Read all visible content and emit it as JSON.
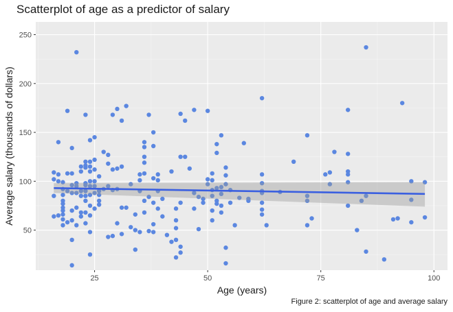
{
  "chart_data": {
    "type": "scatter",
    "title": "Scatterplot of age as a predictor of salary",
    "xlabel": "Age (years)",
    "ylabel": "Average salary (thousands of dollars)",
    "caption": "Figure 2: scatterplot of age and average salary",
    "xlim": [
      12,
      103
    ],
    "ylim": [
      9,
      263
    ],
    "x_ticks": [
      25,
      50,
      75,
      100
    ],
    "y_ticks": [
      50,
      100,
      150,
      200,
      250
    ],
    "grid": true,
    "legend": "none",
    "colors": {
      "panel": "#ebebeb",
      "grid": "#ffffff",
      "points": "#5b87e0",
      "line": "#3a5fe0",
      "band": "#c7c7c7"
    },
    "trend": {
      "x": [
        16,
        98
      ],
      "y": [
        93,
        87
      ],
      "ci_low": [
        88,
        74
      ],
      "ci_high": [
        98,
        99
      ]
    },
    "points": [
      [
        16,
        109
      ],
      [
        16,
        102
      ],
      [
        16,
        85
      ],
      [
        16,
        64
      ],
      [
        17,
        107
      ],
      [
        17,
        100
      ],
      [
        17,
        140
      ],
      [
        17,
        65
      ],
      [
        18,
        99
      ],
      [
        18,
        92
      ],
      [
        18,
        86
      ],
      [
        18,
        80
      ],
      [
        18,
        77
      ],
      [
        18,
        73
      ],
      [
        18,
        70
      ],
      [
        18,
        66
      ],
      [
        18,
        61
      ],
      [
        18,
        55
      ],
      [
        19,
        172
      ],
      [
        19,
        108
      ],
      [
        19,
        90
      ],
      [
        19,
        58
      ],
      [
        20,
        134
      ],
      [
        20,
        108
      ],
      [
        20,
        96
      ],
      [
        20,
        88
      ],
      [
        20,
        70
      ],
      [
        20,
        60
      ],
      [
        20,
        40
      ],
      [
        20,
        14
      ],
      [
        21,
        232
      ],
      [
        21,
        98
      ],
      [
        21,
        95
      ],
      [
        21,
        88
      ],
      [
        21,
        73
      ],
      [
        21,
        55
      ],
      [
        22,
        115
      ],
      [
        22,
        110
      ],
      [
        22,
        90
      ],
      [
        22,
        85
      ],
      [
        22,
        68
      ],
      [
        22,
        64
      ],
      [
        23,
        168
      ],
      [
        23,
        120
      ],
      [
        23,
        116
      ],
      [
        23,
        114
      ],
      [
        23,
        98
      ],
      [
        23,
        96
      ],
      [
        23,
        90
      ],
      [
        23,
        85
      ],
      [
        23,
        80
      ],
      [
        23,
        68
      ],
      [
        23,
        57
      ],
      [
        24,
        142
      ],
      [
        24,
        120
      ],
      [
        24,
        115
      ],
      [
        24,
        110
      ],
      [
        24,
        100
      ],
      [
        24,
        95
      ],
      [
        24,
        86
      ],
      [
        24,
        75
      ],
      [
        24,
        65
      ],
      [
        24,
        48
      ],
      [
        24,
        25
      ],
      [
        25,
        145
      ],
      [
        25,
        122
      ],
      [
        25,
        112
      ],
      [
        25,
        100
      ],
      [
        25,
        95
      ],
      [
        25,
        88
      ],
      [
        25,
        72
      ],
      [
        26,
        105
      ],
      [
        26,
        90
      ],
      [
        26,
        86
      ],
      [
        26,
        80
      ],
      [
        26,
        76
      ],
      [
        27,
        130
      ],
      [
        27,
        92
      ],
      [
        28,
        127
      ],
      [
        28,
        118
      ],
      [
        28,
        95
      ],
      [
        28,
        43
      ],
      [
        29,
        168
      ],
      [
        29,
        112
      ],
      [
        29,
        91
      ],
      [
        29,
        44
      ],
      [
        30,
        174
      ],
      [
        30,
        113
      ],
      [
        30,
        92
      ],
      [
        30,
        57
      ],
      [
        31,
        162
      ],
      [
        31,
        115
      ],
      [
        31,
        73
      ],
      [
        31,
        46
      ],
      [
        32,
        177
      ],
      [
        32,
        73
      ],
      [
        33,
        53
      ],
      [
        33,
        97
      ],
      [
        34,
        30
      ],
      [
        34,
        50
      ],
      [
        34,
        66
      ],
      [
        35,
        107
      ],
      [
        35,
        101
      ],
      [
        35,
        90
      ],
      [
        35,
        48
      ],
      [
        36,
        108
      ],
      [
        36,
        140
      ],
      [
        36,
        135
      ],
      [
        36,
        125
      ],
      [
        36,
        119
      ],
      [
        36,
        80
      ],
      [
        36,
        68
      ],
      [
        37,
        168
      ],
      [
        37,
        84
      ],
      [
        37,
        49
      ],
      [
        38,
        150
      ],
      [
        38,
        136
      ],
      [
        38,
        103
      ],
      [
        38,
        78
      ],
      [
        38,
        56
      ],
      [
        38,
        48
      ],
      [
        39,
        107
      ],
      [
        39,
        101
      ],
      [
        39,
        90
      ],
      [
        39,
        72
      ],
      [
        40,
        82
      ],
      [
        40,
        64
      ],
      [
        41,
        45
      ],
      [
        42,
        110
      ],
      [
        42,
        38
      ],
      [
        43,
        72
      ],
      [
        43,
        60
      ],
      [
        43,
        52
      ],
      [
        43,
        40
      ],
      [
        43,
        22
      ],
      [
        44,
        169
      ],
      [
        44,
        125
      ],
      [
        44,
        78
      ],
      [
        44,
        33
      ],
      [
        44,
        27
      ],
      [
        45,
        162
      ],
      [
        45,
        125
      ],
      [
        46,
        113
      ],
      [
        47,
        173
      ],
      [
        47,
        88
      ],
      [
        47,
        72
      ],
      [
        48,
        84
      ],
      [
        48,
        51
      ],
      [
        49,
        82
      ],
      [
        49,
        78
      ],
      [
        50,
        172
      ],
      [
        50,
        102
      ],
      [
        50,
        97
      ],
      [
        51,
        108
      ],
      [
        51,
        101
      ],
      [
        51,
        91
      ],
      [
        51,
        85
      ],
      [
        51,
        70
      ],
      [
        51,
        60
      ],
      [
        52,
        138
      ],
      [
        52,
        129
      ],
      [
        52,
        93
      ],
      [
        52,
        80
      ],
      [
        52,
        77
      ],
      [
        53,
        147
      ],
      [
        53,
        94
      ],
      [
        53,
        87
      ],
      [
        53,
        75
      ],
      [
        53,
        68
      ],
      [
        54,
        114
      ],
      [
        54,
        106
      ],
      [
        54,
        97
      ],
      [
        54,
        32
      ],
      [
        54,
        16
      ],
      [
        55,
        91
      ],
      [
        55,
        78
      ],
      [
        56,
        55
      ],
      [
        57,
        83
      ],
      [
        58,
        139
      ],
      [
        59,
        82
      ],
      [
        59,
        80
      ],
      [
        62,
        185
      ],
      [
        62,
        107
      ],
      [
        62,
        98
      ],
      [
        62,
        90
      ],
      [
        62,
        88
      ],
      [
        62,
        78
      ],
      [
        62,
        71
      ],
      [
        62,
        66
      ],
      [
        63,
        55
      ],
      [
        66,
        89
      ],
      [
        69,
        120
      ],
      [
        72,
        147
      ],
      [
        72,
        85
      ],
      [
        72,
        80
      ],
      [
        72,
        55
      ],
      [
        73,
        62
      ],
      [
        76,
        107
      ],
      [
        77,
        109
      ],
      [
        77,
        97
      ],
      [
        78,
        130
      ],
      [
        81,
        173
      ],
      [
        81,
        128
      ],
      [
        81,
        110
      ],
      [
        81,
        107
      ],
      [
        81,
        99
      ],
      [
        81,
        75
      ],
      [
        83,
        50
      ],
      [
        84,
        80
      ],
      [
        85,
        237
      ],
      [
        85,
        85
      ],
      [
        85,
        28
      ],
      [
        89,
        20
      ],
      [
        91,
        61
      ],
      [
        92,
        62
      ],
      [
        93,
        180
      ],
      [
        95,
        100
      ],
      [
        95,
        81
      ],
      [
        95,
        58
      ],
      [
        98,
        99
      ],
      [
        98,
        63
      ]
    ]
  }
}
